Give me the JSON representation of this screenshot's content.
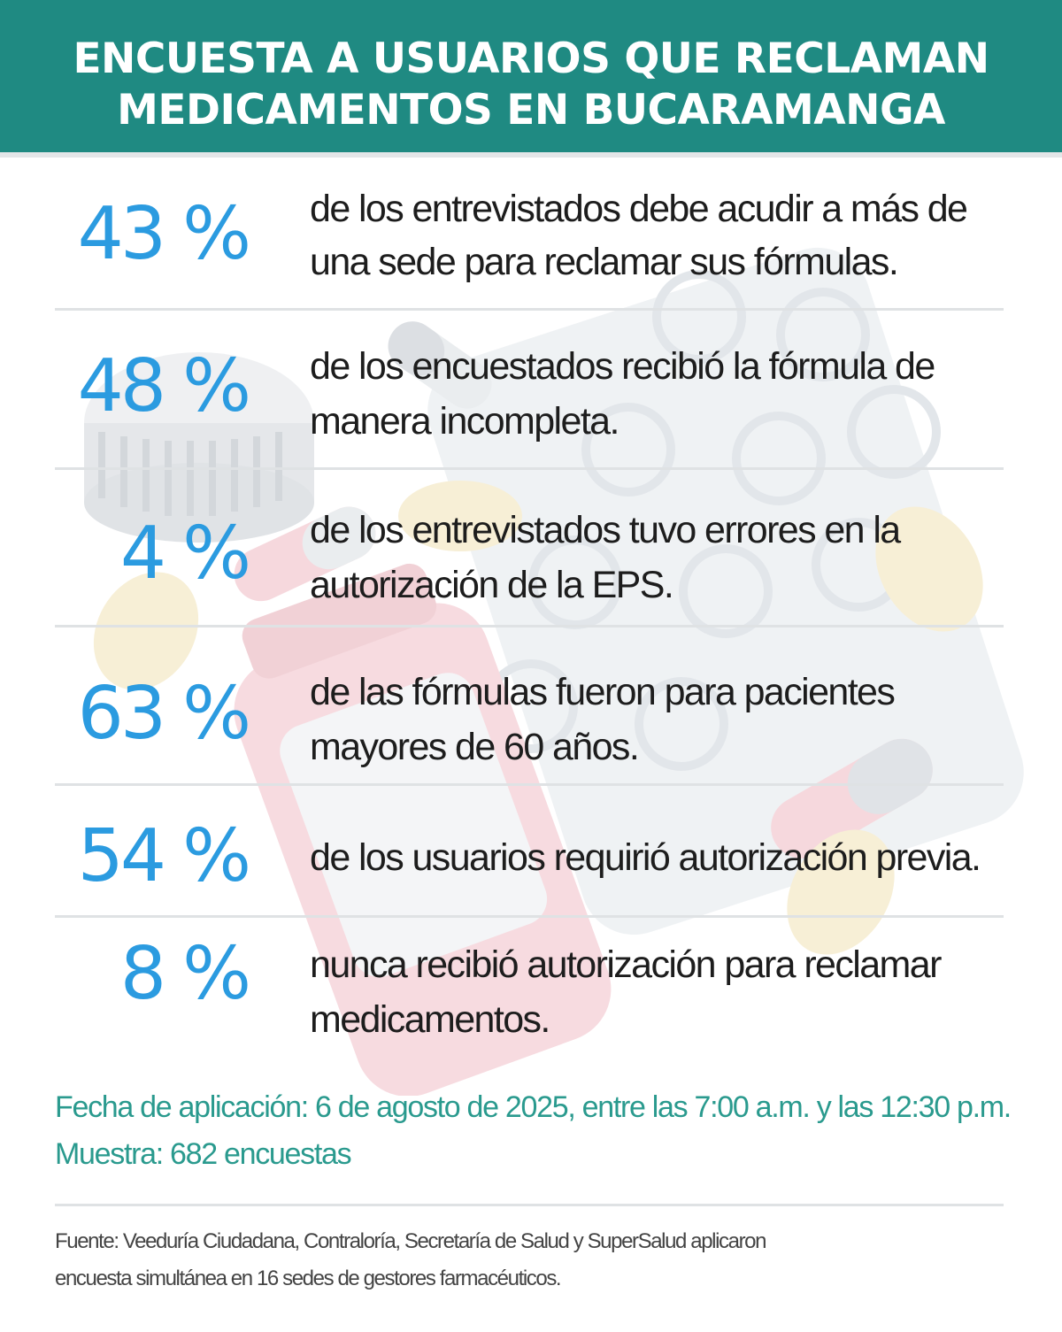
{
  "header": {
    "title_line1": "ENCUESTA A USUARIOS QUE RECLAMAN",
    "title_line2": "MEDICAMENTOS EN BUCARAMANGA"
  },
  "stats": [
    {
      "pct": "43 %",
      "line1": "de los entrevistados debe acudir a más de",
      "line2": "una sede para reclamar sus fórmulas."
    },
    {
      "pct": "48 %",
      "line1": "de los encuestados recibió la fórmula de",
      "line2": "manera incompleta."
    },
    {
      "pct": "4 %",
      "line1": "de los entrevistados tuvo errores en la",
      "line2": "autorización de la EPS."
    },
    {
      "pct": "63 %",
      "line1": "de las fórmulas fueron para pacientes",
      "line2": "mayores de 60 años."
    },
    {
      "pct": "54 %",
      "line1": "de los usuarios requirió autorización previa.",
      "line2": ""
    },
    {
      "pct": "8 %",
      "line1": "nunca recibió autorización para reclamar",
      "line2": "medicamentos."
    }
  ],
  "meta": {
    "fecha": "Fecha de aplicación: 6 de agosto de 2025, entre las 7:00 a.m. y las 12:30 p.m.",
    "muestra": "Muestra: 682 encuestas"
  },
  "source": {
    "line1": "Fuente: Veeduría Ciudadana, Contraloría, Secretaría de Salud y SuperSalud aplicaron",
    "line2": "encuesta simultánea en 16 sedes de gestores farmacéuticos."
  },
  "colors": {
    "header_bg": "#1f8a82",
    "percent": "#2b9be0",
    "meta_text": "#2a9a8e"
  }
}
